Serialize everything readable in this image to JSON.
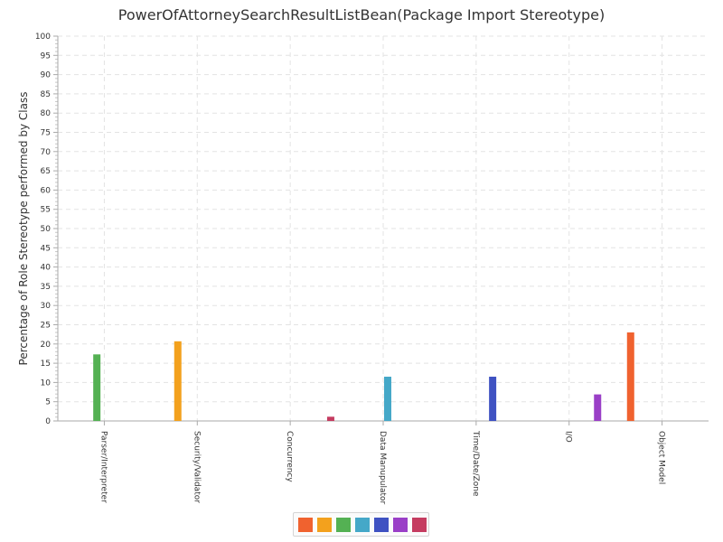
{
  "chart_data": {
    "type": "bar",
    "title": "PowerOfAttorneySearchResultListBean(Package Import Stereotype)",
    "ylabel": "Percentage of Role Stereotype performed by Class",
    "xlabel": "",
    "ylim": [
      0,
      100
    ],
    "ytick_step": 5,
    "grid": true,
    "legend_position": "bottom",
    "categories": [
      "Parser/Interpreter",
      "Security/Validator",
      "Concurrency",
      "Data Manupulator",
      "Time/Date/Zone",
      "I/O",
      "Object Model"
    ],
    "series": [
      {
        "color": "#f0622f",
        "values": [
          0,
          0,
          0,
          0,
          0,
          0,
          23
        ]
      },
      {
        "color": "#f3a11d",
        "values": [
          0,
          20.7,
          0,
          0,
          0,
          0,
          0
        ]
      },
      {
        "color": "#54b153",
        "values": [
          17.3,
          0,
          0,
          0,
          0,
          0,
          0
        ]
      },
      {
        "color": "#45a8c8",
        "values": [
          0,
          0,
          0,
          11.5,
          0,
          0,
          0
        ]
      },
      {
        "color": "#3f52c2",
        "values": [
          0,
          0,
          0,
          0,
          11.5,
          0,
          0
        ]
      },
      {
        "color": "#9a3fc7",
        "values": [
          0,
          0,
          0,
          0,
          0,
          6.9,
          0
        ]
      },
      {
        "color": "#c53c60",
        "values": [
          0,
          0,
          1.1,
          0,
          0,
          0,
          0
        ]
      }
    ]
  }
}
